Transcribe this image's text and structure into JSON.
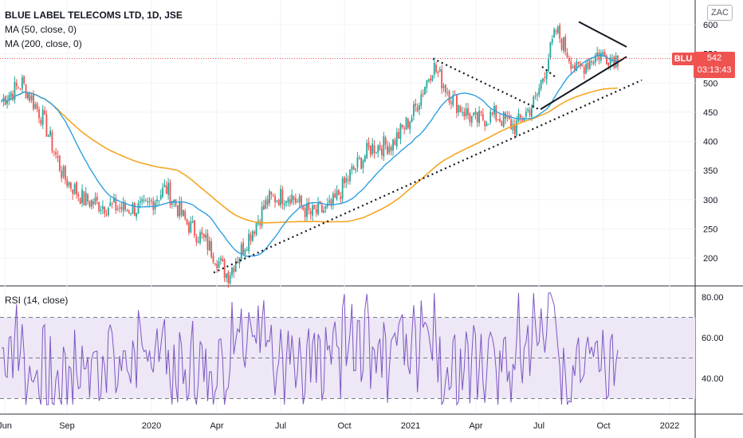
{
  "header": {
    "title": "BLUE LABEL TELECOMS LTD, 1D, JSE",
    "ma50": "MA (50, close, 0)",
    "ma200": "MA (200, close, 0)",
    "rsi": "RSI (14, close)"
  },
  "badges": {
    "currency": "ZAC",
    "symbol": "BLU",
    "price": "542",
    "countdown": "03:13:43"
  },
  "colors": {
    "up": "#26a69a",
    "down": "#ef5350",
    "ma50": "#2e9fe0",
    "ma200": "#f5a623",
    "rsi": "#7e57c2",
    "rsi_band": "#ede7f6"
  },
  "chart_data": [
    {
      "type": "candlestick",
      "title": "BLUE LABEL TELECOMS LTD, 1D, JSE",
      "x_ticks": [
        "Jun",
        "Sep",
        "2020",
        "Apr",
        "Jul",
        "Oct",
        "2021",
        "Apr",
        "Jul",
        "Oct",
        "2022"
      ],
      "y_ticks": [
        200,
        250,
        300,
        350,
        400,
        450,
        500,
        550,
        600
      ],
      "ylim": [
        150,
        620
      ],
      "last_price": 542,
      "price_anchors": [
        {
          "t": "Jun",
          "close": 470
        },
        {
          "t": "Jun+",
          "close": 500
        },
        {
          "t": "Jul",
          "close": 440
        },
        {
          "t": "Aug",
          "close": 340
        },
        {
          "t": "Sep",
          "close": 300
        },
        {
          "t": "Oct",
          "close": 290
        },
        {
          "t": "Nov",
          "close": 285
        },
        {
          "t": "Dec",
          "close": 285
        },
        {
          "t": "2020",
          "close": 320
        },
        {
          "t": "Feb",
          "close": 260
        },
        {
          "t": "Mar",
          "close": 225
        },
        {
          "t": "Apr",
          "close": 170
        },
        {
          "t": "May",
          "close": 235
        },
        {
          "t": "Jun",
          "close": 300
        },
        {
          "t": "Jul",
          "close": 310
        },
        {
          "t": "Aug",
          "close": 275
        },
        {
          "t": "Sep",
          "close": 285
        },
        {
          "t": "Oct",
          "close": 345
        },
        {
          "t": "Nov",
          "close": 390
        },
        {
          "t": "Dec",
          "close": 395
        },
        {
          "t": "2021",
          "close": 445
        },
        {
          "t": "Feb",
          "close": 530
        },
        {
          "t": "Mar",
          "close": 470
        },
        {
          "t": "Apr",
          "close": 435
        },
        {
          "t": "May",
          "close": 445
        },
        {
          "t": "Jun",
          "close": 425
        },
        {
          "t": "Jul",
          "close": 470
        },
        {
          "t": "Aug",
          "close": 590
        },
        {
          "t": "Sep",
          "close": 520
        },
        {
          "t": "Oct",
          "close": 550
        },
        {
          "t": "Oct+",
          "close": 542
        }
      ],
      "moving_averages": [
        {
          "name": "MA (50, close, 0)",
          "color": "#2e9fe0"
        },
        {
          "name": "MA (200, close, 0)",
          "color": "#f5a623"
        }
      ],
      "trendlines": [
        {
          "style": "dotted",
          "label": "long-term support"
        },
        {
          "style": "dotted",
          "label": "falling resistance"
        },
        {
          "style": "solid",
          "label": "triangle upper"
        },
        {
          "style": "solid",
          "label": "triangle lower"
        }
      ]
    },
    {
      "type": "line",
      "title": "RSI (14, close)",
      "y_ticks": [
        "40.00",
        "60.00",
        "80.00"
      ],
      "ylim": [
        22,
        86
      ],
      "bands": [
        30,
        50,
        70
      ]
    }
  ]
}
